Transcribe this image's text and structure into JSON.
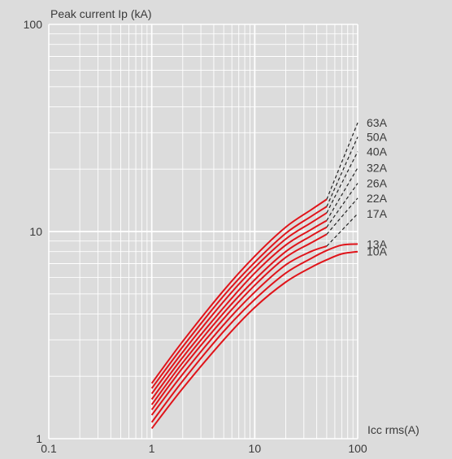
{
  "chart_data": {
    "type": "line",
    "title": "",
    "ylabel": "Peak current Ip (kA)",
    "xlabel": "Icc rms(A)",
    "x_scale": "log",
    "y_scale": "log",
    "xlim": [
      0.1,
      100
    ],
    "ylim": [
      1,
      100
    ],
    "x_ticks": [
      {
        "value": 0.1,
        "label": "0.1"
      },
      {
        "value": 1,
        "label": "1"
      },
      {
        "value": 10,
        "label": "10"
      },
      {
        "value": 100,
        "label": "100"
      }
    ],
    "y_ticks": [
      {
        "value": 1,
        "label": "1"
      },
      {
        "value": 10,
        "label": "10"
      },
      {
        "value": 100,
        "label": "100"
      }
    ],
    "grid": true,
    "colors": {
      "solid": "#e0141a",
      "dashed": "#222222",
      "grid": "#ffffff",
      "background": "#dcdcdc",
      "text": "#3a3a3a"
    },
    "series": [
      {
        "name": "10A",
        "solid": [
          [
            1,
            1.12
          ],
          [
            2,
            1.75
          ],
          [
            5,
            3.0
          ],
          [
            10,
            4.3
          ],
          [
            20,
            5.7
          ],
          [
            35,
            6.7
          ],
          [
            50,
            7.3
          ],
          [
            70,
            7.8
          ],
          [
            100,
            8.0
          ]
        ],
        "dashed": []
      },
      {
        "name": "13A",
        "solid": [
          [
            1,
            1.2
          ],
          [
            2,
            1.9
          ],
          [
            5,
            3.3
          ],
          [
            10,
            4.7
          ],
          [
            20,
            6.3
          ],
          [
            35,
            7.4
          ],
          [
            50,
            8.1
          ],
          [
            70,
            8.6
          ],
          [
            100,
            8.7
          ]
        ],
        "dashed": []
      },
      {
        "name": "17A",
        "solid": [
          [
            1,
            1.3
          ],
          [
            2,
            2.05
          ],
          [
            5,
            3.55
          ],
          [
            10,
            5.1
          ],
          [
            20,
            6.9
          ],
          [
            35,
            8.0
          ],
          [
            50,
            8.5
          ]
        ],
        "dashed": [
          [
            50,
            8.5
          ],
          [
            100,
            12.2
          ]
        ]
      },
      {
        "name": "22A",
        "solid": [
          [
            1,
            1.38
          ],
          [
            2,
            2.2
          ],
          [
            5,
            3.8
          ],
          [
            10,
            5.5
          ],
          [
            20,
            7.5
          ],
          [
            35,
            8.8
          ],
          [
            50,
            9.7
          ]
        ],
        "dashed": [
          [
            50,
            9.7
          ],
          [
            100,
            14.5
          ]
        ]
      },
      {
        "name": "26A",
        "solid": [
          [
            1,
            1.46
          ],
          [
            2,
            2.33
          ],
          [
            5,
            4.05
          ],
          [
            10,
            5.85
          ],
          [
            20,
            8.0
          ],
          [
            35,
            9.5
          ],
          [
            50,
            10.5
          ]
        ],
        "dashed": [
          [
            50,
            10.5
          ],
          [
            100,
            17.1
          ]
        ]
      },
      {
        "name": "32A",
        "solid": [
          [
            1,
            1.55
          ],
          [
            2,
            2.47
          ],
          [
            5,
            4.3
          ],
          [
            10,
            6.3
          ],
          [
            20,
            8.6
          ],
          [
            35,
            10.2
          ],
          [
            50,
            11.3
          ]
        ],
        "dashed": [
          [
            50,
            11.3
          ],
          [
            100,
            20.3
          ]
        ]
      },
      {
        "name": "40A",
        "solid": [
          [
            1,
            1.65
          ],
          [
            2,
            2.62
          ],
          [
            5,
            4.6
          ],
          [
            10,
            6.7
          ],
          [
            20,
            9.2
          ],
          [
            35,
            11.0
          ],
          [
            50,
            12.3
          ]
        ],
        "dashed": [
          [
            50,
            12.3
          ],
          [
            100,
            24.3
          ]
        ]
      },
      {
        "name": "50A",
        "solid": [
          [
            1,
            1.75
          ],
          [
            2,
            2.78
          ],
          [
            5,
            4.9
          ],
          [
            10,
            7.1
          ],
          [
            20,
            9.8
          ],
          [
            35,
            11.8
          ],
          [
            50,
            13.2
          ]
        ],
        "dashed": [
          [
            50,
            13.2
          ],
          [
            100,
            28.6
          ]
        ]
      },
      {
        "name": "63A",
        "solid": [
          [
            1,
            1.85
          ],
          [
            2,
            2.95
          ],
          [
            5,
            5.2
          ],
          [
            10,
            7.6
          ],
          [
            20,
            10.5
          ],
          [
            35,
            12.7
          ],
          [
            50,
            14.3
          ]
        ],
        "dashed": [
          [
            50,
            14.3
          ],
          [
            100,
            33.5
          ]
        ]
      }
    ]
  }
}
